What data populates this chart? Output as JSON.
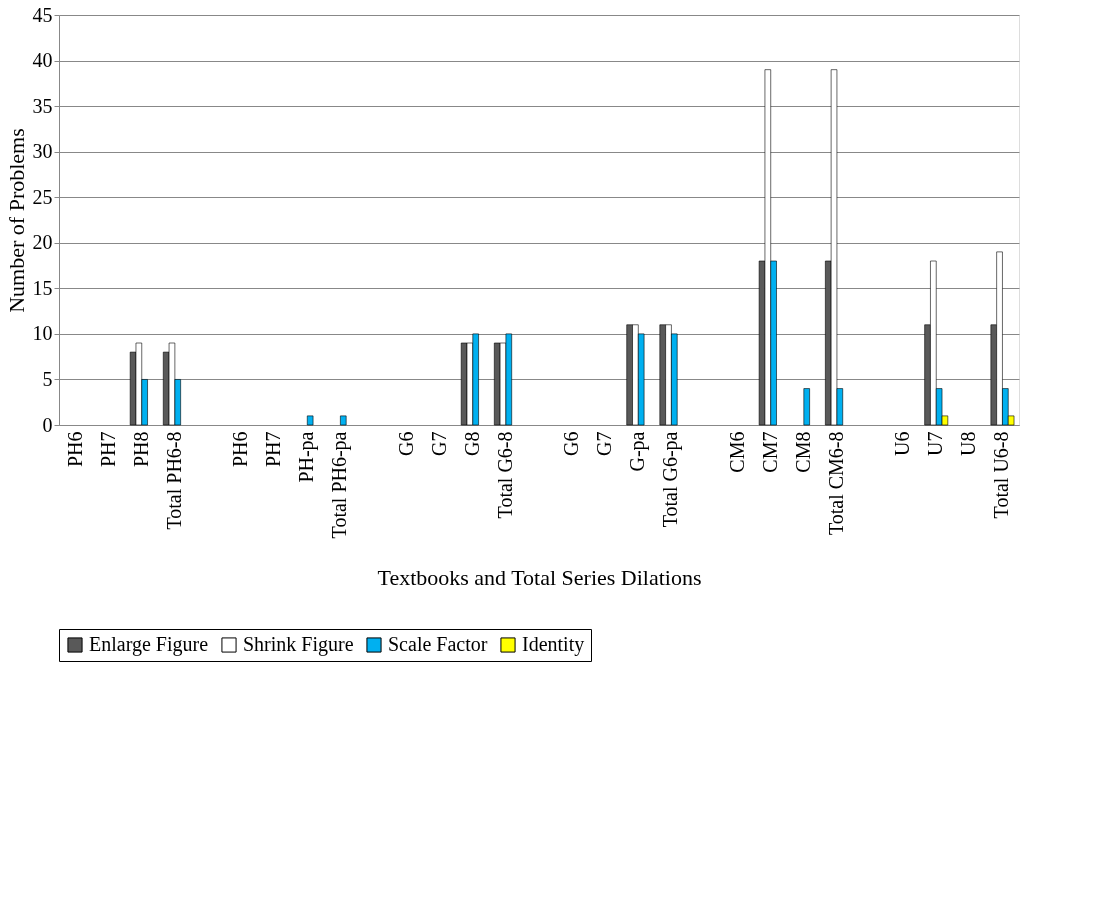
{
  "chart_data": {
    "type": "bar",
    "xlabel": "Textbooks and Total Series Dilations",
    "ylabel": "Number of Problems",
    "categories": [
      "PH6",
      "PH7",
      "PH8",
      "Total PH6-8",
      null,
      "PH6",
      "PH7",
      "PH-pa",
      "Total PH6-pa",
      null,
      "G6",
      "G7",
      "G8",
      "Total G6-8",
      null,
      "G6",
      "G7",
      "G-pa",
      "Total G6-pa",
      null,
      "CM6",
      "CM7",
      "CM8",
      "Total CM6-8",
      null,
      "U6",
      "U7",
      "U8",
      "Total U6-8"
    ],
    "series": [
      {
        "name": "Enlarge Figure",
        "color": "#595959",
        "values": [
          null,
          null,
          8,
          8,
          null,
          null,
          null,
          null,
          null,
          null,
          null,
          null,
          9,
          9,
          null,
          null,
          null,
          11,
          11,
          null,
          null,
          18,
          null,
          18,
          null,
          null,
          11,
          null,
          11
        ]
      },
      {
        "name": "Shrink Figure",
        "color": "#ffffff",
        "values": [
          null,
          null,
          9,
          9,
          null,
          null,
          null,
          null,
          null,
          null,
          null,
          null,
          9,
          9,
          null,
          null,
          null,
          11,
          11,
          null,
          null,
          39,
          null,
          39,
          null,
          null,
          18,
          null,
          19
        ]
      },
      {
        "name": "Scale Factor",
        "color": "#00b0f0",
        "values": [
          null,
          null,
          5,
          5,
          null,
          null,
          null,
          1,
          1,
          null,
          null,
          null,
          10,
          10,
          null,
          null,
          null,
          10,
          10,
          null,
          null,
          18,
          4,
          4,
          null,
          null,
          4,
          null,
          4
        ]
      },
      {
        "name": "Identity",
        "color": "#ffff00",
        "values": [
          null,
          null,
          null,
          null,
          null,
          null,
          null,
          null,
          null,
          null,
          null,
          null,
          null,
          null,
          null,
          null,
          null,
          null,
          null,
          null,
          null,
          null,
          null,
          null,
          null,
          null,
          1,
          null,
          1
        ]
      }
    ],
    "ylim": [
      0,
      45
    ],
    "yticks": [
      0,
      5,
      10,
      15,
      20,
      25,
      30,
      35,
      40,
      45
    ],
    "grid": "y",
    "legend": "bottom"
  }
}
